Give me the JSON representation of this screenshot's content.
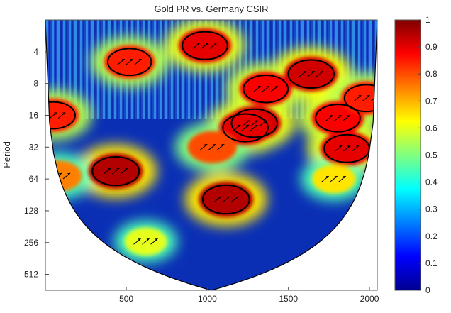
{
  "chart_data": {
    "type": "heatmap",
    "title": "Gold PR vs. Germany CSIR",
    "xlabel": "",
    "ylabel": "Period",
    "x_ticks": [
      500,
      1000,
      1500,
      2000
    ],
    "y_ticks": [
      4,
      8,
      16,
      32,
      64,
      128,
      256,
      512
    ],
    "xlim": [
      1,
      2048
    ],
    "ylim_period": [
      2,
      724
    ],
    "y_scale": "log2",
    "colorbar": {
      "ticks": [
        "0",
        "0.1",
        "0.2",
        "0.3",
        "0.4",
        "0.5",
        "0.6",
        "0.7",
        "0.8",
        "0.9",
        "1"
      ],
      "range": [
        0,
        1
      ],
      "colormap": "jet"
    },
    "high_coherence_regions": [
      {
        "x": 435,
        "period": 54,
        "level": 0.95
      },
      {
        "x": 1115,
        "period": 100,
        "level": 0.95
      },
      {
        "x": 1290,
        "period": 19,
        "level": 0.92
      },
      {
        "x": 1235,
        "period": 21,
        "level": 0.9
      },
      {
        "x": 1860,
        "period": 33,
        "level": 0.9
      },
      {
        "x": 1805,
        "period": 17,
        "level": 0.88
      },
      {
        "x": 1640,
        "period": 6.5,
        "level": 0.92
      },
      {
        "x": 1360,
        "period": 9,
        "level": 0.88
      },
      {
        "x": 1980,
        "period": 11,
        "level": 0.85
      },
      {
        "x": 50,
        "period": 16,
        "level": 0.85
      },
      {
        "x": 985,
        "period": 3.5,
        "level": 0.9
      },
      {
        "x": 520,
        "period": 5,
        "level": 0.85
      },
      {
        "x": 80,
        "period": 60,
        "level": 0.75
      },
      {
        "x": 1030,
        "period": 32,
        "level": 0.8
      },
      {
        "x": 1780,
        "period": 64,
        "level": 0.65
      },
      {
        "x": 620,
        "period": 250,
        "level": 0.6
      }
    ],
    "grid": false,
    "legend": "colorbar-right"
  }
}
